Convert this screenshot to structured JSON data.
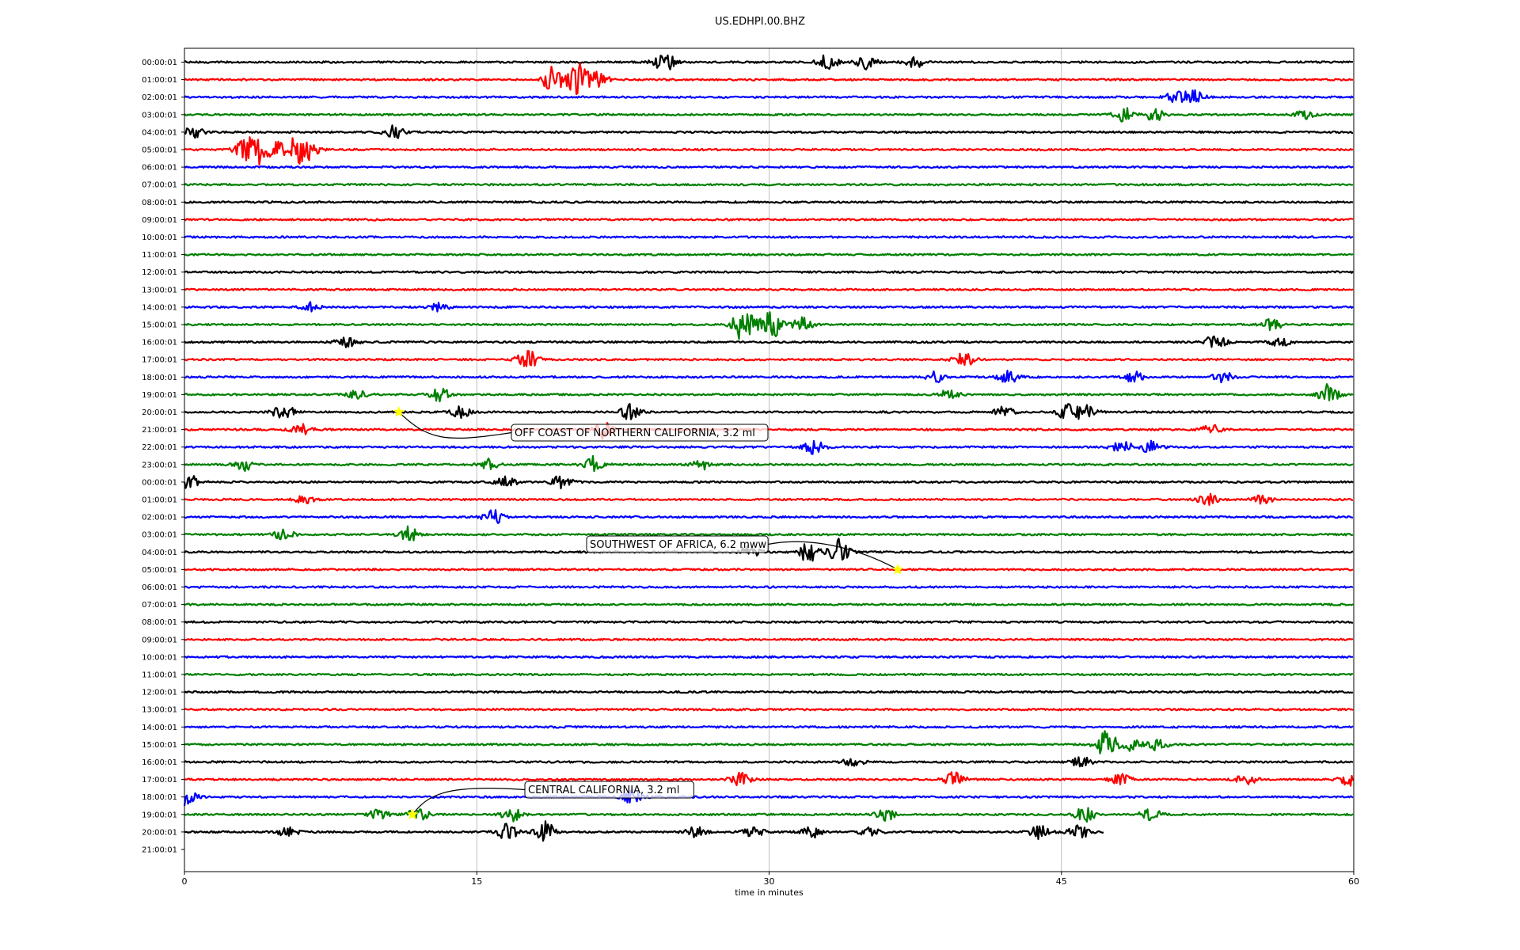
{
  "chart_data": {
    "type": "line",
    "title": "US.EDHPI.00.BHZ",
    "xlabel": "time in minutes",
    "ylabel": "",
    "xlim": [
      0,
      60
    ],
    "x_ticks": [
      "0",
      "15",
      "30",
      "45",
      "60"
    ],
    "grid": "vertical gridlines at 15, 30, 45",
    "trace_colors": [
      "#000000",
      "#ff0000",
      "#0000ff",
      "#008000"
    ],
    "row_labels": [
      "00:00:01",
      "01:00:01",
      "02:00:01",
      "03:00:01",
      "04:00:01",
      "05:00:01",
      "06:00:01",
      "07:00:01",
      "08:00:01",
      "09:00:01",
      "10:00:01",
      "11:00:01",
      "12:00:01",
      "13:00:01",
      "14:00:01",
      "15:00:01",
      "16:00:01",
      "17:00:01",
      "18:00:01",
      "19:00:01",
      "20:00:01",
      "21:00:01",
      "22:00:01",
      "23:00:01",
      "00:00:01",
      "01:00:01",
      "02:00:01",
      "03:00:01",
      "04:00:01",
      "05:00:01",
      "06:00:01",
      "07:00:01",
      "08:00:01",
      "09:00:01",
      "10:00:01",
      "11:00:01",
      "12:00:01",
      "13:00:01",
      "14:00:01",
      "15:00:01",
      "16:00:01",
      "17:00:01",
      "18:00:01",
      "19:00:01",
      "20:00:01",
      "21:00:01"
    ],
    "last_trace_ends_at_minute": 47.2,
    "event_bursts": [
      {
        "row": 0,
        "minute": 24.6,
        "amp": 1.0
      },
      {
        "row": 0,
        "minute": 33.0,
        "amp": 0.7
      },
      {
        "row": 0,
        "minute": 35.0,
        "amp": 0.6
      },
      {
        "row": 0,
        "minute": 37.5,
        "amp": 0.5
      },
      {
        "row": 1,
        "minute": 18.9,
        "amp": 1.2
      },
      {
        "row": 1,
        "minute": 20.2,
        "amp": 1.6
      },
      {
        "row": 1,
        "minute": 21.2,
        "amp": 0.8
      },
      {
        "row": 2,
        "minute": 50.8,
        "amp": 0.6
      },
      {
        "row": 2,
        "minute": 51.8,
        "amp": 0.6
      },
      {
        "row": 3,
        "minute": 48.2,
        "amp": 0.6
      },
      {
        "row": 3,
        "minute": 49.8,
        "amp": 0.6
      },
      {
        "row": 3,
        "minute": 57.5,
        "amp": 0.4
      },
      {
        "row": 4,
        "minute": 0.5,
        "amp": 0.5
      },
      {
        "row": 4,
        "minute": 10.8,
        "amp": 0.6
      },
      {
        "row": 5,
        "minute": 3.0,
        "amp": 0.6
      },
      {
        "row": 5,
        "minute": 3.7,
        "amp": 1.6
      },
      {
        "row": 5,
        "minute": 4.7,
        "amp": 0.8
      },
      {
        "row": 5,
        "minute": 5.8,
        "amp": 1.2
      },
      {
        "row": 5,
        "minute": 6.4,
        "amp": 0.7
      },
      {
        "row": 14,
        "minute": 6.5,
        "amp": 0.4
      },
      {
        "row": 14,
        "minute": 13.0,
        "amp": 0.4
      },
      {
        "row": 15,
        "minute": 28.7,
        "amp": 1.8
      },
      {
        "row": 15,
        "minute": 30.1,
        "amp": 1.3
      },
      {
        "row": 15,
        "minute": 31.7,
        "amp": 0.6
      },
      {
        "row": 15,
        "minute": 55.8,
        "amp": 0.5
      },
      {
        "row": 16,
        "minute": 8.3,
        "amp": 0.5
      },
      {
        "row": 16,
        "minute": 52.9,
        "amp": 0.7
      },
      {
        "row": 16,
        "minute": 56.2,
        "amp": 0.4
      },
      {
        "row": 17,
        "minute": 17.6,
        "amp": 0.9
      },
      {
        "row": 17,
        "minute": 40.0,
        "amp": 0.8
      },
      {
        "row": 18,
        "minute": 38.5,
        "amp": 0.5
      },
      {
        "row": 18,
        "minute": 42.3,
        "amp": 0.6
      },
      {
        "row": 18,
        "minute": 48.7,
        "amp": 0.6
      },
      {
        "row": 18,
        "minute": 53.3,
        "amp": 0.5
      },
      {
        "row": 19,
        "minute": 8.9,
        "amp": 0.4
      },
      {
        "row": 19,
        "minute": 13.1,
        "amp": 0.6
      },
      {
        "row": 19,
        "minute": 39.2,
        "amp": 0.5
      },
      {
        "row": 19,
        "minute": 58.7,
        "amp": 0.9
      },
      {
        "row": 20,
        "minute": 5.1,
        "amp": 0.8
      },
      {
        "row": 20,
        "minute": 14.2,
        "amp": 0.5
      },
      {
        "row": 20,
        "minute": 22.9,
        "amp": 0.7
      },
      {
        "row": 20,
        "minute": 42.1,
        "amp": 0.5
      },
      {
        "row": 20,
        "minute": 45.4,
        "amp": 0.9
      },
      {
        "row": 20,
        "minute": 46.3,
        "amp": 0.6
      },
      {
        "row": 21,
        "minute": 6.0,
        "amp": 0.5
      },
      {
        "row": 21,
        "minute": 21.5,
        "amp": 0.9
      },
      {
        "row": 21,
        "minute": 52.7,
        "amp": 0.4
      },
      {
        "row": 22,
        "minute": 32.3,
        "amp": 0.6
      },
      {
        "row": 22,
        "minute": 48.1,
        "amp": 0.6
      },
      {
        "row": 22,
        "minute": 49.6,
        "amp": 0.6
      },
      {
        "row": 23,
        "minute": 3.1,
        "amp": 0.6
      },
      {
        "row": 23,
        "minute": 15.6,
        "amp": 0.5
      },
      {
        "row": 23,
        "minute": 21.0,
        "amp": 0.7
      },
      {
        "row": 23,
        "minute": 26.5,
        "amp": 0.5
      },
      {
        "row": 24,
        "minute": 0.3,
        "amp": 0.6
      },
      {
        "row": 24,
        "minute": 16.5,
        "amp": 0.5
      },
      {
        "row": 24,
        "minute": 19.3,
        "amp": 0.7
      },
      {
        "row": 25,
        "minute": 6.2,
        "amp": 0.4
      },
      {
        "row": 25,
        "minute": 52.5,
        "amp": 0.5
      },
      {
        "row": 25,
        "minute": 55.3,
        "amp": 0.4
      },
      {
        "row": 26,
        "minute": 15.8,
        "amp": 0.7
      },
      {
        "row": 27,
        "minute": 5.1,
        "amp": 0.5
      },
      {
        "row": 27,
        "minute": 11.5,
        "amp": 0.7
      },
      {
        "row": 28,
        "minute": 29.0,
        "amp": 0.6
      },
      {
        "row": 28,
        "minute": 32.0,
        "amp": 0.9
      },
      {
        "row": 28,
        "minute": 33.6,
        "amp": 1.2
      },
      {
        "row": 39,
        "minute": 47.3,
        "amp": 1.3
      },
      {
        "row": 39,
        "minute": 48.5,
        "amp": 0.6
      },
      {
        "row": 39,
        "minute": 49.9,
        "amp": 0.5
      },
      {
        "row": 40,
        "minute": 34.3,
        "amp": 0.4
      },
      {
        "row": 40,
        "minute": 46.0,
        "amp": 0.5
      },
      {
        "row": 41,
        "minute": 28.5,
        "amp": 0.6
      },
      {
        "row": 41,
        "minute": 39.5,
        "amp": 0.7
      },
      {
        "row": 41,
        "minute": 48.0,
        "amp": 0.6
      },
      {
        "row": 41,
        "minute": 54.5,
        "amp": 0.5
      },
      {
        "row": 41,
        "minute": 59.8,
        "amp": 0.6
      },
      {
        "row": 42,
        "minute": 0.1,
        "amp": 0.8
      },
      {
        "row": 42,
        "minute": 23.0,
        "amp": 0.6
      },
      {
        "row": 43,
        "minute": 10.0,
        "amp": 0.5
      },
      {
        "row": 43,
        "minute": 12.0,
        "amp": 0.6
      },
      {
        "row": 43,
        "minute": 16.8,
        "amp": 0.6
      },
      {
        "row": 43,
        "minute": 36.0,
        "amp": 0.5
      },
      {
        "row": 43,
        "minute": 46.2,
        "amp": 0.7
      },
      {
        "row": 43,
        "minute": 49.6,
        "amp": 0.6
      },
      {
        "row": 44,
        "minute": 5.3,
        "amp": 0.4
      },
      {
        "row": 44,
        "minute": 16.6,
        "amp": 0.8
      },
      {
        "row": 44,
        "minute": 18.5,
        "amp": 0.9
      },
      {
        "row": 44,
        "minute": 26.2,
        "amp": 0.5
      },
      {
        "row": 44,
        "minute": 29.2,
        "amp": 0.5
      },
      {
        "row": 44,
        "minute": 32.2,
        "amp": 0.5
      },
      {
        "row": 44,
        "minute": 35.2,
        "amp": 0.4
      },
      {
        "row": 44,
        "minute": 43.9,
        "amp": 0.6
      },
      {
        "row": 44,
        "minute": 45.9,
        "amp": 0.6
      }
    ],
    "events": [
      {
        "label": "OFF COAST OF NORTHERN CALIFORNIA, 3.2 ml",
        "row": 20,
        "minute": 11.0
      },
      {
        "label": "SOUTHWEST OF AFRICA, 6.2 mww",
        "row": 29,
        "minute": 36.6
      },
      {
        "label": "CENTRAL CALIFORNIA, 3.2 ml",
        "row": 43,
        "minute": 11.7
      }
    ],
    "event_marker_color": "#ffff00"
  }
}
